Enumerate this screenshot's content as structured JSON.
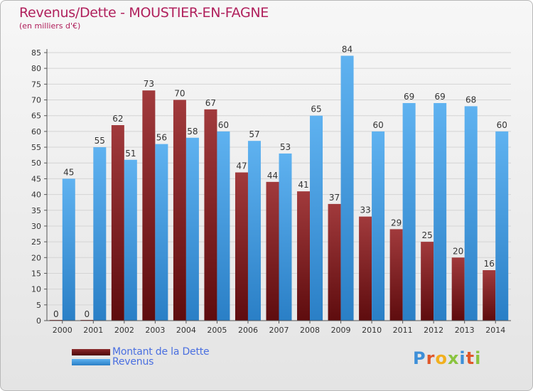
{
  "title": "Revenus/Dette - MOUSTIER-EN-FAGNE",
  "subtitle": "(en milliers d'€)",
  "logo": [
    "P",
    "r",
    "o",
    "x",
    "i",
    "t",
    "i"
  ],
  "logo_colors": [
    "#3d8fd8",
    "#e0572a",
    "#f2b01e",
    "#8ac43f",
    "#3d8fd8",
    "#e0572a",
    "#8ac43f"
  ],
  "chart_data": {
    "type": "bar",
    "categories": [
      "2000",
      "2001",
      "2002",
      "2003",
      "2004",
      "2005",
      "2006",
      "2007",
      "2008",
      "2009",
      "2010",
      "2011",
      "2012",
      "2013",
      "2014"
    ],
    "series": [
      {
        "name": "Montant de la Dette",
        "color": "#7a1a1c",
        "values": [
          0,
          0,
          62,
          73,
          70,
          67,
          47,
          44,
          41,
          37,
          33,
          29,
          25,
          20,
          16
        ]
      },
      {
        "name": "Revenus",
        "color": "#3a95dd",
        "values": [
          45,
          55,
          51,
          56,
          58,
          60,
          57,
          53,
          65,
          84,
          60,
          69,
          69,
          68,
          60
        ]
      }
    ],
    "ylim": [
      0,
      85
    ],
    "yticks": [
      0,
      5,
      10,
      15,
      20,
      25,
      30,
      35,
      40,
      45,
      50,
      55,
      60,
      65,
      70,
      75,
      80,
      85
    ],
    "grid": true,
    "legend": "bottom-left"
  }
}
